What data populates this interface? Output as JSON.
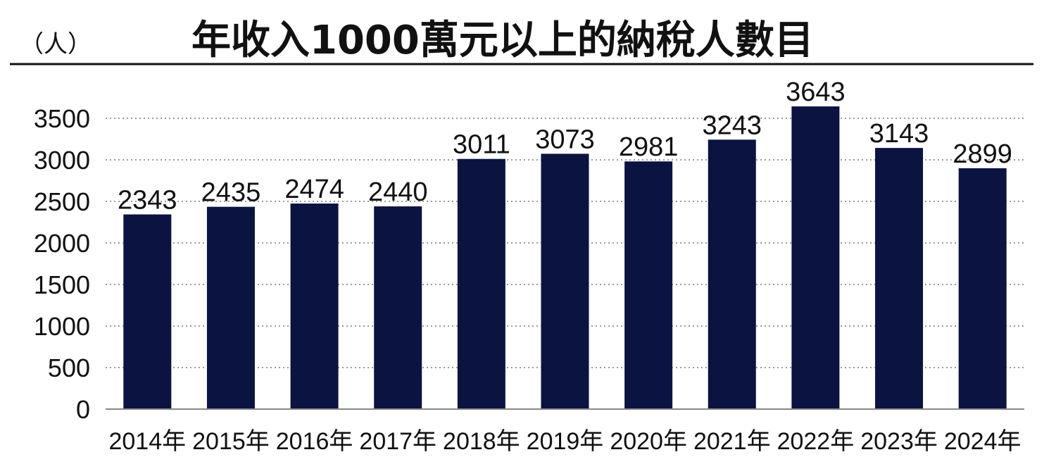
{
  "unit_label": "（人）",
  "chart_data": {
    "type": "bar",
    "title": "年收入1000萬元以上的納稅人數目",
    "xlabel": "",
    "ylabel": "（人）",
    "categories": [
      "2014年",
      "2015年",
      "2016年",
      "2017年",
      "2018年",
      "2019年",
      "2020年",
      "2021年",
      "2022年",
      "2023年",
      "2024年"
    ],
    "values": [
      2343,
      2435,
      2474,
      2440,
      3011,
      3073,
      2981,
      3243,
      3643,
      3143,
      2899
    ],
    "data_labels": [
      "2343",
      "2435",
      "2474",
      "2440",
      "3011",
      "3073",
      "2981",
      "3243",
      "3643",
      "3143",
      "2899"
    ],
    "ylim": [
      0,
      3500
    ],
    "yticks": [
      0,
      500,
      1000,
      1500,
      2000,
      2500,
      3000,
      3500
    ],
    "ytick_labels": [
      "0",
      "500",
      "1000",
      "1500",
      "2000",
      "2500",
      "3000",
      "3500"
    ],
    "grid": true,
    "grid_style": "dotted",
    "bar_color": "#0b1340",
    "legend": "none"
  }
}
